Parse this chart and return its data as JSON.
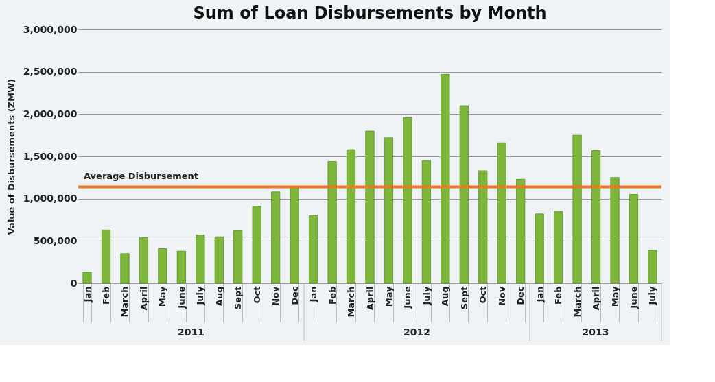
{
  "chart_data": {
    "type": "bar",
    "title": "Sum of Loan Disbursements by Month",
    "ylabel": "Value of Disbursements (ZMW)",
    "categories": [
      "Jan",
      "Feb",
      "March",
      "April",
      "May",
      "June",
      "July",
      "Aug",
      "Sept",
      "Oct",
      "Nov",
      "Dec",
      "Jan",
      "Feb",
      "March",
      "April",
      "May",
      "June",
      "July",
      "Aug",
      "Sept",
      "Oct",
      "Nov",
      "Dec",
      "Jan",
      "Feb",
      "March",
      "April",
      "May",
      "June",
      "July"
    ],
    "values": [
      130000,
      630000,
      350000,
      540000,
      410000,
      380000,
      570000,
      550000,
      620000,
      910000,
      1080000,
      1130000,
      800000,
      1440000,
      1580000,
      1800000,
      1720000,
      1960000,
      1450000,
      2470000,
      2100000,
      1330000,
      1660000,
      1230000,
      820000,
      850000,
      1750000,
      1570000,
      1250000,
      1050000,
      390000
    ],
    "color": "#7db63b",
    "ylim": [
      0,
      3000000
    ],
    "yticks": [
      {
        "value": 0,
        "label": "0"
      },
      {
        "value": 500000,
        "label": "500,000"
      },
      {
        "value": 1000000,
        "label": "1,000,000"
      },
      {
        "value": 1500000,
        "label": "1,500,000"
      },
      {
        "value": 2000000,
        "label": "2,000,000"
      },
      {
        "value": 2500000,
        "label": "2,500,000"
      },
      {
        "value": 3000000,
        "label": "3,000,000"
      }
    ],
    "grid": "y",
    "ref_lines": [
      {
        "axis": "y",
        "value": 1140000,
        "label": "Average Disbursement",
        "color": "#f07620"
      }
    ],
    "annotations": [
      "2011",
      "2012",
      "2013"
    ]
  }
}
